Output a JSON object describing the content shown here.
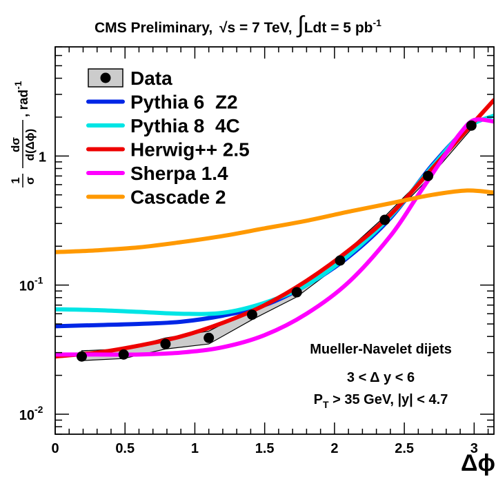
{
  "chart_data": {
    "type": "line",
    "title": "CMS Preliminary, √s = 7 TeV, ∫Ldt = 5 pb⁻¹",
    "title_parts": {
      "experiment": "CMS Preliminary,",
      "sqrt_symbol": "√",
      "energy": "s = 7 TeV,",
      "integral_symbol": "∫",
      "lumi": "Ldt = 5 pb",
      "lumi_exp": "-1"
    },
    "xlabel": "Δϕ",
    "ylabel_parts": {
      "frac1_num": "1",
      "frac1_den": "σ",
      "frac2_num": "dσ",
      "frac2_den": "d(Δϕ)",
      "unit": ", rad",
      "unit_exp": "-1"
    },
    "xlim": [
      0,
      3.14159
    ],
    "ylim": [
      0.007,
      7
    ],
    "yscale": "log",
    "x_ticks": [
      {
        "value": 0,
        "label": "0"
      },
      {
        "value": 0.5,
        "label": "0.5"
      },
      {
        "value": 1,
        "label": "1"
      },
      {
        "value": 1.5,
        "label": "1.5"
      },
      {
        "value": 2,
        "label": "2"
      },
      {
        "value": 2.5,
        "label": "2.5"
      },
      {
        "value": 3,
        "label": "3"
      }
    ],
    "y_ticks": [
      {
        "value": 0.01,
        "base": "10",
        "exp": "-2"
      },
      {
        "value": 0.1,
        "base": "10",
        "exp": "-1"
      },
      {
        "value": 1,
        "base": "1",
        "exp": ""
      }
    ],
    "data": {
      "name": "Data",
      "x": [
        0.19,
        0.49,
        0.79,
        1.1,
        1.41,
        1.73,
        2.04,
        2.36,
        2.67,
        2.98
      ],
      "y": [
        0.028,
        0.029,
        0.035,
        0.039,
        0.059,
        0.088,
        0.155,
        0.32,
        0.7,
        1.72
      ],
      "band_low": [
        0.026,
        0.027,
        0.032,
        0.035,
        0.054,
        0.081,
        0.145,
        0.3,
        0.66,
        1.62
      ],
      "band_high": [
        0.031,
        0.032,
        0.039,
        0.044,
        0.065,
        0.096,
        0.165,
        0.34,
        0.74,
        1.82
      ]
    },
    "series": [
      {
        "name": "Pythia 6  Z2",
        "color": "#0026e6",
        "x": [
          0.0,
          0.3,
          0.6,
          0.9,
          1.2,
          1.5,
          1.8,
          2.1,
          2.4,
          2.7,
          2.95,
          3.05
        ],
        "y": [
          0.048,
          0.049,
          0.05,
          0.052,
          0.058,
          0.07,
          0.1,
          0.165,
          0.33,
          0.85,
          1.65,
          1.9
        ]
      },
      {
        "name": "Pythia 8  4C",
        "color": "#00e5e5",
        "x": [
          0.0,
          0.3,
          0.6,
          0.9,
          1.2,
          1.5,
          1.8,
          2.1,
          2.4,
          2.7,
          2.95,
          3.14
        ],
        "y": [
          0.065,
          0.064,
          0.062,
          0.06,
          0.061,
          0.073,
          0.1,
          0.17,
          0.34,
          0.83,
          1.65,
          2.05
        ]
      },
      {
        "name": "Herwig++ 2.5",
        "color": "#ee0000",
        "x": [
          0.0,
          0.3,
          0.6,
          0.9,
          1.2,
          1.5,
          1.8,
          2.1,
          2.4,
          2.7,
          2.95,
          3.14
        ],
        "y": [
          0.028,
          0.03,
          0.034,
          0.04,
          0.051,
          0.07,
          0.108,
          0.185,
          0.35,
          0.8,
          1.6,
          2.7
        ]
      },
      {
        "name": "Sherpa 1.4",
        "color": "#ff00ff",
        "x": [
          0.0,
          0.3,
          0.6,
          0.9,
          1.2,
          1.5,
          1.8,
          2.1,
          2.4,
          2.6,
          2.8,
          2.9,
          3.0,
          3.14
        ],
        "y": [
          0.029,
          0.029,
          0.029,
          0.03,
          0.033,
          0.041,
          0.06,
          0.105,
          0.24,
          0.5,
          1.05,
          1.5,
          1.9,
          1.85
        ]
      },
      {
        "name": "Cascade 2",
        "color": "#ff9900",
        "x": [
          0.0,
          0.3,
          0.6,
          0.9,
          1.2,
          1.5,
          1.8,
          2.1,
          2.4,
          2.7,
          2.95,
          3.14
        ],
        "y": [
          0.18,
          0.186,
          0.196,
          0.215,
          0.24,
          0.275,
          0.315,
          0.37,
          0.43,
          0.5,
          0.54,
          0.52
        ]
      }
    ],
    "legend": {
      "placement": "top-left"
    },
    "annotations": {
      "line1": "Mueller-Navelet dijets",
      "line2": "3 < Δ y < 6",
      "line3_main": "P",
      "line3_sub": "T",
      "line3_rest": " > 35 GeV, |y| < 4.7"
    }
  }
}
